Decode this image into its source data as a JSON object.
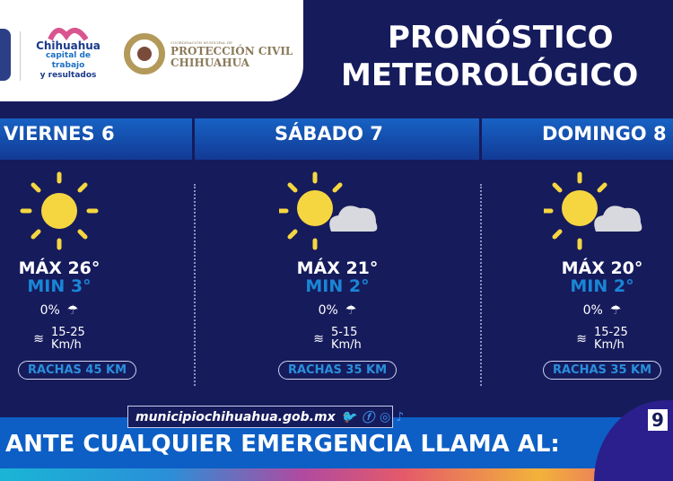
{
  "header": {
    "logo1": {
      "line1": "Chihuahua",
      "line2": "capital de trabajo",
      "line3": "y resultados"
    },
    "logo2": {
      "small": "COORDINACIÓN MUNICIPAL DE",
      "line1": "PROTECCIÓN CIVIL",
      "line2": "CHIHUAHUA"
    },
    "title_line1": "PRONÓSTICO",
    "title_line2": "METEOROLÓGICO"
  },
  "days": [
    {
      "name": "VIERNES 6",
      "icon": "sun-icon",
      "max": "MÁX 26°",
      "min": "MIN 3°",
      "rain": "0%",
      "wind": "15-25",
      "wind_unit": "Km/h",
      "gusts": "RACHAS 45 KM"
    },
    {
      "name": "SÁBADO 7",
      "icon": "sun-cloud-icon",
      "max": "MÁX 21°",
      "min": "MIN 2°",
      "rain": "0%",
      "wind": "5-15",
      "wind_unit": "Km/h",
      "gusts": "RACHAS 35 KM"
    },
    {
      "name": "DOMINGO 8",
      "icon": "sun-cloud-icon",
      "max": "MÁX 20°",
      "min": "MIN 2°",
      "rain": "0%",
      "wind": "15-25",
      "wind_unit": "Km/h",
      "gusts": "RACHAS 35 KM"
    }
  ],
  "footer": {
    "website": "municipiochihuahua.gob.mx",
    "emergency": "ANTE CUALQUIER EMERGENCIA LLAMA AL:",
    "number": "9"
  },
  "colors": {
    "background": "#161b5c",
    "accent": "#1a86d6",
    "band": "#0d5fc5",
    "sun": "#f5d640"
  }
}
